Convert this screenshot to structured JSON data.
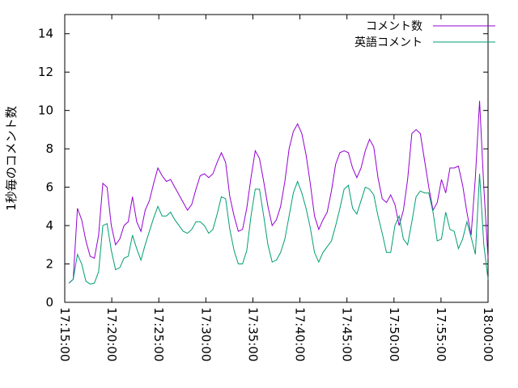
{
  "chart_data": {
    "type": "line",
    "ylabel": "1秒毎のコメント数",
    "x": [
      "17:15:27",
      "17:15:54",
      "17:16:21",
      "17:16:48",
      "17:17:15",
      "17:17:42",
      "17:18:09",
      "17:18:36",
      "17:19:03",
      "17:19:30",
      "17:19:57",
      "17:20:24",
      "17:20:51",
      "17:21:18",
      "17:21:45",
      "17:22:12",
      "17:22:39",
      "17:23:06",
      "17:23:33",
      "17:24:00",
      "17:24:27",
      "17:24:54",
      "17:25:21",
      "17:25:48",
      "17:26:15",
      "17:26:42",
      "17:27:09",
      "17:27:36",
      "17:28:03",
      "17:28:30",
      "17:28:57",
      "17:29:24",
      "17:29:51",
      "17:30:18",
      "17:30:45",
      "17:31:12",
      "17:31:39",
      "17:32:06",
      "17:32:33",
      "17:33:00",
      "17:33:27",
      "17:33:54",
      "17:34:21",
      "17:34:48",
      "17:35:15",
      "17:35:42",
      "17:36:09",
      "17:36:36",
      "17:37:03",
      "17:37:30",
      "17:37:57",
      "17:38:24",
      "17:38:51",
      "17:39:18",
      "17:39:45",
      "17:40:12",
      "17:40:39",
      "17:41:06",
      "17:41:33",
      "17:42:00",
      "17:42:27",
      "17:42:54",
      "17:43:21",
      "17:43:48",
      "17:44:15",
      "17:44:42",
      "17:45:09",
      "17:45:36",
      "17:46:03",
      "17:46:30",
      "17:46:57",
      "17:47:24",
      "17:47:51",
      "17:48:18",
      "17:48:45",
      "17:49:12",
      "17:49:39",
      "17:50:06",
      "17:50:33",
      "17:51:00",
      "17:51:27",
      "17:51:54",
      "17:52:21",
      "17:52:48",
      "17:53:15",
      "17:53:42",
      "17:54:09",
      "17:54:36",
      "17:55:03",
      "17:55:30",
      "17:55:57",
      "17:56:24",
      "17:56:51",
      "17:57:18",
      "17:57:45",
      "17:58:12",
      "17:58:39",
      "17:59:06",
      "17:59:33",
      "18:00:00"
    ],
    "series": [
      {
        "name": "コメント数",
        "color": "#9400d3",
        "values": [
          1.0,
          1.2,
          4.9,
          4.3,
          3.2,
          2.4,
          2.3,
          3.5,
          6.2,
          6.0,
          4.0,
          3.0,
          3.3,
          4.0,
          4.2,
          5.5,
          4.2,
          3.7,
          4.8,
          5.3,
          6.2,
          7.0,
          6.6,
          6.3,
          6.4,
          6.0,
          5.6,
          5.2,
          4.8,
          5.1,
          5.9,
          6.6,
          6.7,
          6.5,
          6.7,
          7.3,
          7.8,
          7.3,
          5.5,
          4.5,
          3.7,
          3.8,
          4.9,
          6.5,
          7.9,
          7.5,
          6.3,
          5.0,
          4.0,
          4.3,
          5.0,
          6.3,
          8.0,
          8.9,
          9.3,
          8.8,
          7.7,
          6.2,
          4.5,
          3.8,
          4.3,
          4.7,
          5.8,
          7.2,
          7.8,
          7.9,
          7.8,
          7.0,
          6.5,
          7.0,
          7.9,
          8.5,
          8.1,
          6.5,
          5.4,
          5.2,
          5.6,
          5.1,
          4.0,
          4.8,
          6.4,
          8.8,
          9.0,
          8.8,
          7.4,
          6.0,
          4.8,
          5.2,
          6.4,
          5.7,
          7.0,
          7.0,
          7.1,
          6.1,
          4.7,
          3.5,
          6.5,
          10.5,
          6.0,
          2.3
        ]
      },
      {
        "name": "英語コメント",
        "color": "#009e73",
        "values": [
          1.0,
          1.2,
          2.5,
          2.0,
          1.1,
          0.95,
          1.0,
          1.6,
          4.0,
          4.1,
          2.7,
          1.7,
          1.8,
          2.3,
          2.4,
          3.5,
          2.8,
          2.2,
          3.0,
          3.7,
          4.4,
          5.0,
          4.5,
          4.5,
          4.7,
          4.3,
          4.0,
          3.7,
          3.6,
          3.8,
          4.2,
          4.2,
          4.0,
          3.6,
          3.8,
          4.6,
          5.5,
          5.4,
          3.8,
          2.7,
          2.0,
          2.0,
          2.7,
          4.5,
          5.9,
          5.9,
          4.5,
          3.0,
          2.1,
          2.2,
          2.6,
          3.3,
          4.5,
          5.7,
          6.3,
          5.7,
          4.9,
          3.9,
          2.6,
          2.1,
          2.6,
          2.9,
          3.2,
          4.0,
          4.9,
          5.9,
          6.1,
          4.9,
          4.6,
          5.3,
          6.0,
          5.9,
          5.6,
          4.5,
          3.6,
          2.6,
          2.6,
          4.0,
          4.5,
          3.3,
          3.0,
          4.2,
          5.5,
          5.8,
          5.7,
          5.7,
          4.7,
          3.2,
          3.3,
          4.7,
          3.8,
          3.7,
          2.8,
          3.3,
          4.2,
          3.4,
          2.5,
          6.7,
          3.0,
          1.2
        ]
      }
    ],
    "xlim": [
      "17:15:00",
      "18:00:00"
    ],
    "xticks": [
      "17:15:00",
      "17:20:00",
      "17:25:00",
      "17:30:00",
      "17:35:00",
      "17:40:00",
      "17:45:00",
      "17:50:00",
      "17:55:00",
      "18:00:00"
    ],
    "ylim": [
      0,
      15
    ],
    "yticks": [
      0,
      2,
      4,
      6,
      8,
      10,
      12,
      14
    ],
    "legend": "top-right"
  }
}
